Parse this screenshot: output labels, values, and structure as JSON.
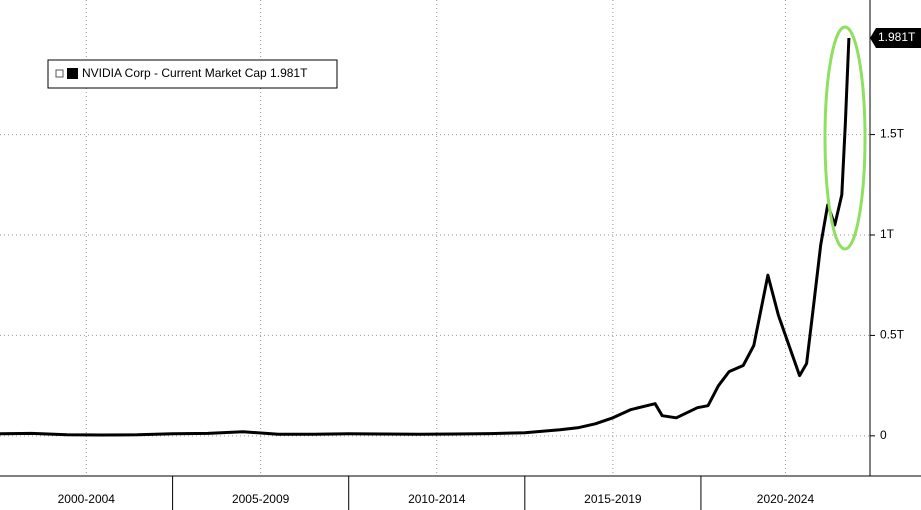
{
  "chart_data": {
    "type": "line",
    "series": [
      {
        "name": "NVIDIA Corp - Current Market Cap 1.981T",
        "color": "#000000",
        "x": [
          2000.1,
          2001,
          2002,
          2003,
          2004,
          2005,
          2006,
          2007,
          2008,
          2009,
          2010,
          2011,
          2012,
          2013,
          2014,
          2015,
          2016,
          2016.5,
          2017,
          2017.5,
          2018,
          2018.7,
          2018.9,
          2019.3,
          2019.9,
          2020.2,
          2020.5,
          2020.8,
          2021.2,
          2021.5,
          2021.9,
          2022.2,
          2022.5,
          2022.8,
          2023.0,
          2023.2,
          2023.4,
          2023.6,
          2023.8,
          2024.0,
          2024.1,
          2024.2
        ],
        "values": [
          0.01,
          0.012,
          0.005,
          0.004,
          0.005,
          0.01,
          0.012,
          0.02,
          0.008,
          0.008,
          0.01,
          0.009,
          0.008,
          0.009,
          0.011,
          0.015,
          0.03,
          0.04,
          0.06,
          0.09,
          0.13,
          0.16,
          0.1,
          0.09,
          0.14,
          0.15,
          0.25,
          0.32,
          0.35,
          0.45,
          0.8,
          0.6,
          0.45,
          0.3,
          0.36,
          0.65,
          0.95,
          1.15,
          1.05,
          1.2,
          1.55,
          1.981
        ],
        "last_label": "1.981T"
      }
    ],
    "periods": [
      {
        "label": "2000-2004",
        "start": 2000,
        "end": 2005
      },
      {
        "label": "2005-2009",
        "start": 2005,
        "end": 2010
      },
      {
        "label": "2010-2014",
        "start": 2010,
        "end": 2015
      },
      {
        "label": "2015-2019",
        "start": 2015,
        "end": 2020
      },
      {
        "label": "2020-2024",
        "start": 2020,
        "end": 2025
      }
    ],
    "xlim": [
      2000.1,
      2024.8
    ],
    "ylim": [
      -0.2,
      2.17
    ],
    "yticks": [
      0,
      {
        "value": 0.5,
        "label": "0.5T"
      },
      {
        "value": 1,
        "label": "1T"
      },
      {
        "value": 1.5,
        "label": "1.5T"
      }
    ],
    "grid": true
  }
}
